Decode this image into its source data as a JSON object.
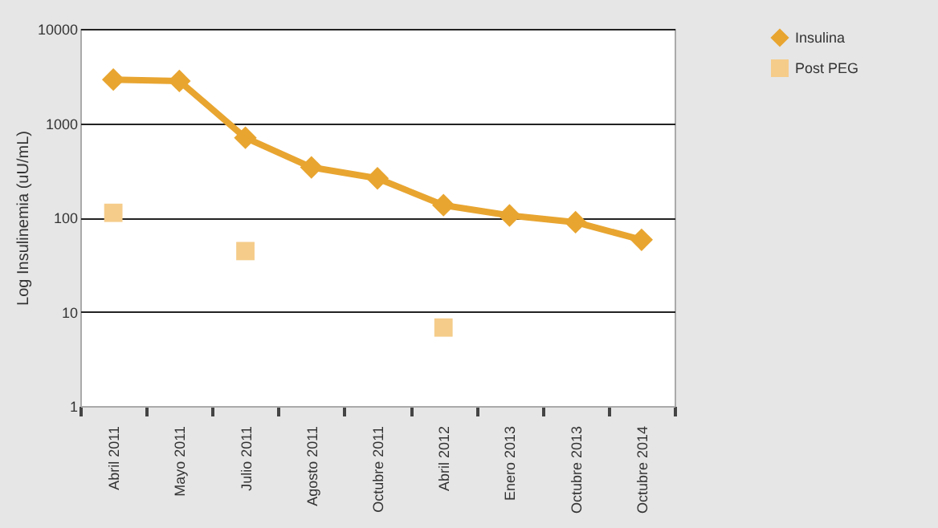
{
  "chart_data": {
    "type": "line",
    "ylabel": "Log Insulinemia (uU/mL)",
    "log": true,
    "ylim": [
      1,
      10000
    ],
    "yticks": [
      1,
      10,
      100,
      1000,
      10000
    ],
    "grid": "y",
    "legend": "right",
    "marker": "diamond",
    "line_style": "solid",
    "categories": [
      "Abril 2011",
      "Mayo 2011",
      "Julio 2011",
      "Agosto 2011",
      "Octubre 2011",
      "Abril 2012",
      "Enero 2013",
      "Octubre 2013",
      "Octubre 2014"
    ],
    "series": [
      {
        "name": "Insulina",
        "color": "#e8a530",
        "values": [
          2900,
          2800,
          700,
          340,
          260,
          135,
          105,
          89,
          58
        ]
      },
      {
        "name": "Post PEG",
        "type": "scatter",
        "marker": "square",
        "color": "#f5cc8a",
        "values": [
          112,
          null,
          44,
          null,
          null,
          6.8,
          null,
          null,
          null
        ]
      }
    ]
  }
}
